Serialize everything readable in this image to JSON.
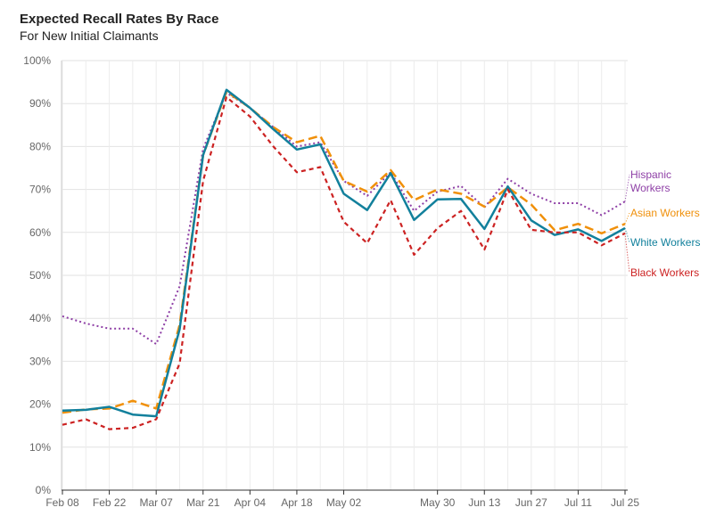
{
  "chart_data": {
    "type": "line",
    "title": "Expected Recall Rates By Race",
    "subtitle": "For New Initial Claimants",
    "xlabel": "",
    "ylabel": "",
    "ylim": [
      0,
      100
    ],
    "y_ticks": [
      "0%",
      "10%",
      "20%",
      "30%",
      "40%",
      "50%",
      "60%",
      "70%",
      "80%",
      "90%",
      "100%"
    ],
    "x_ticks": [
      "Feb 08",
      "Feb 22",
      "Mar 07",
      "Mar 21",
      "Apr 04",
      "Apr 18",
      "May 02",
      "May 30",
      "Jun 13",
      "Jun 27",
      "Jul 11",
      "Jul 25"
    ],
    "grid": true,
    "x": [
      "Feb 08",
      "Feb 15",
      "Feb 22",
      "Feb 29",
      "Mar 07",
      "Mar 14",
      "Mar 21",
      "Mar 28",
      "Apr 04",
      "Apr 11",
      "Apr 18",
      "Apr 25",
      "May 02",
      "May 09",
      "May 16",
      "May 23",
      "May 30",
      "Jun 06",
      "Jun 13",
      "Jun 20",
      "Jun 27",
      "Jul 04",
      "Jul 11",
      "Jul 18",
      "Jul 25"
    ],
    "series": [
      {
        "name": "Hispanic Workers",
        "label_lines": [
          "Hispanic",
          "Workers"
        ],
        "color": "#8e3fa6",
        "dash": "dotted",
        "values": [
          40.5,
          38.8,
          37.6,
          37.6,
          34.0,
          47.5,
          79.5,
          92.5,
          89.0,
          84.5,
          80.0,
          81.0,
          72.0,
          68.5,
          74.0,
          65.0,
          69.5,
          70.8,
          65.8,
          72.5,
          69.0,
          66.8,
          66.8,
          64.0,
          67.2
        ]
      },
      {
        "name": "Asian Workers",
        "label_lines": [
          "Asian Workers"
        ],
        "color": "#f0900a",
        "dash": "long-dash",
        "values": [
          18.0,
          18.8,
          19.0,
          20.8,
          19.0,
          38.5,
          78.0,
          92.8,
          89.0,
          84.5,
          81.0,
          82.5,
          72.0,
          69.5,
          74.5,
          67.5,
          70.0,
          69.0,
          66.0,
          70.5,
          66.5,
          60.5,
          62.0,
          59.8,
          62.0
        ]
      },
      {
        "name": "White Workers",
        "label_lines": [
          "White Workers"
        ],
        "color": "#12809c",
        "dash": "solid",
        "values": [
          18.5,
          18.7,
          19.4,
          17.6,
          17.2,
          37.5,
          78.0,
          93.2,
          89.0,
          84.0,
          79.3,
          80.5,
          69.0,
          65.2,
          73.8,
          62.9,
          67.7,
          67.8,
          60.8,
          70.7,
          62.8,
          59.4,
          60.7,
          58.0,
          61.0
        ]
      },
      {
        "name": "Black Workers",
        "label_lines": [
          "Black Workers"
        ],
        "color": "#cc2222",
        "dash": "short-dash",
        "values": [
          15.2,
          16.5,
          14.2,
          14.5,
          16.5,
          29.5,
          72.0,
          91.5,
          87.0,
          80.0,
          74.0,
          75.2,
          62.5,
          57.5,
          67.5,
          54.8,
          61.0,
          65.0,
          56.0,
          70.0,
          60.6,
          60.0,
          60.0,
          57.0,
          59.8
        ]
      }
    ]
  }
}
